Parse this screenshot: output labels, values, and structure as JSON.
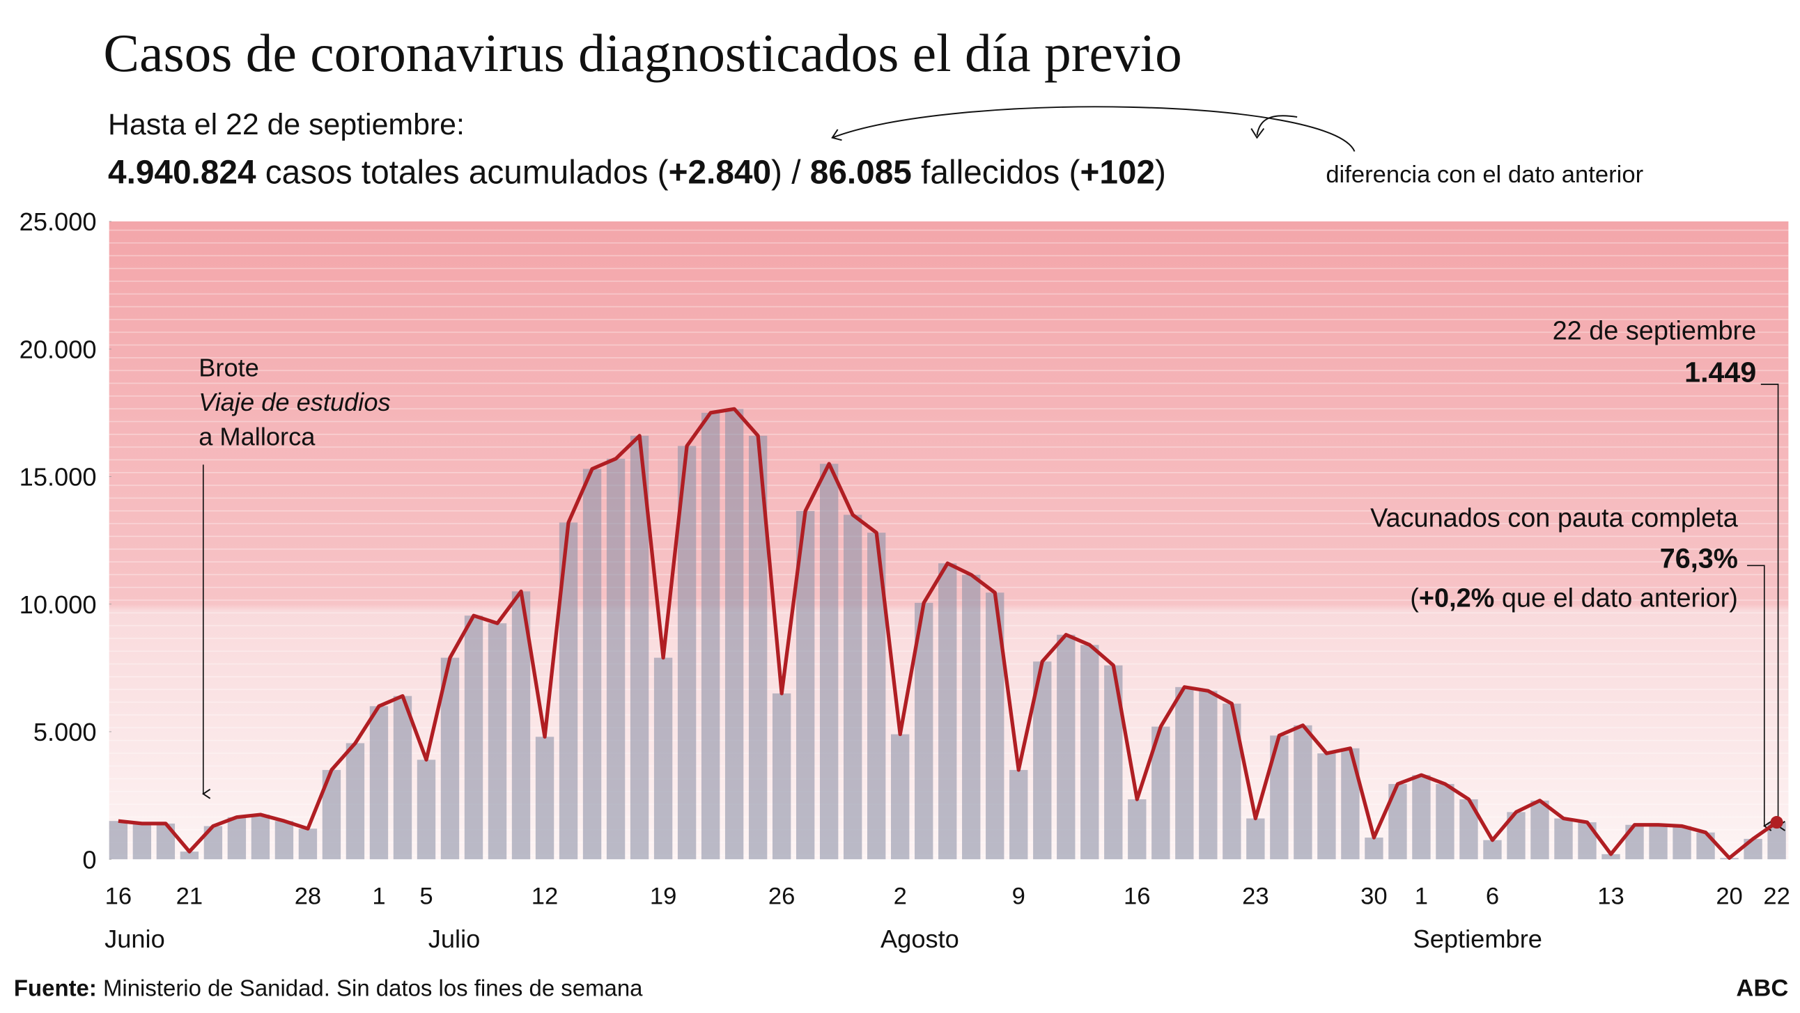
{
  "chart_data": {
    "type": "bar-line",
    "title": "Casos de coronavirus diagnosticados el día previo",
    "subtitle": "Hasta el 22 de septiembre:",
    "stats": [
      {
        "text": "4.940.824",
        "bold": true
      },
      {
        "text": " casos totales acumulados (",
        "bold": false
      },
      {
        "text": "+2.840",
        "bold": true
      },
      {
        "text": ") / ",
        "bold": false
      },
      {
        "text": "86.085",
        "bold": true
      },
      {
        "text": " fallecidos (",
        "bold": false
      },
      {
        "text": "+102",
        "bold": true
      },
      {
        "text": ")",
        "bold": false
      }
    ],
    "stats_note": "diferencia con el dato anterior",
    "annotation_outbreak": [
      "Brote",
      "Viaje de estudios",
      "a Mallorca"
    ],
    "annotation_last": "22 de septiembre",
    "annotation_vaccine": {
      "title": "Vacunados con pauta completa",
      "value": "76,3%",
      "open": "(",
      "change": "+0,2%",
      "rest": " que el dato anterior)"
    },
    "categories": [
      "16",
      null,
      null,
      "21",
      null,
      null,
      null,
      null,
      "28",
      null,
      null,
      "1",
      null,
      "5",
      null,
      null,
      null,
      null,
      "12",
      null,
      null,
      null,
      null,
      "19",
      null,
      null,
      null,
      null,
      "26",
      null,
      null,
      null,
      null,
      "2",
      null,
      null,
      null,
      null,
      "9",
      null,
      null,
      null,
      null,
      "16",
      null,
      null,
      null,
      null,
      "23",
      null,
      null,
      null,
      null,
      "30",
      null,
      "1",
      null,
      null,
      "6",
      null,
      null,
      null,
      null,
      "13",
      null,
      null,
      null,
      null,
      "20",
      null,
      "22"
    ],
    "months": [
      "Junio",
      "Julio",
      "Agosto",
      "Septiembre"
    ],
    "values": [
      1500,
      1400,
      1400,
      300,
      1300,
      1650,
      1750,
      1500,
      1200,
      3500,
      4550,
      6000,
      6400,
      3900,
      7900,
      9550,
      9250,
      10500,
      4800,
      13200,
      15300,
      15700,
      16600,
      7900,
      16200,
      17500,
      17650,
      16600,
      6500,
      13650,
      15500,
      13500,
      12800,
      4900,
      10050,
      11600,
      11150,
      10450,
      3500,
      7750,
      8800,
      8400,
      7600,
      2350,
      5200,
      6750,
      6600,
      6100,
      1600,
      4850,
      5250,
      4150,
      4350,
      850,
      2950,
      3300,
      2950,
      2350,
      750,
      1850,
      2300,
      1600,
      1450,
      200,
      1350,
      1350,
      1300,
      1050,
      50,
      800,
      1449
    ],
    "value_labels": [
      null,
      null,
      null,
      null,
      null,
      null,
      null,
      null,
      null,
      null,
      null,
      null,
      null,
      null,
      null,
      null,
      null,
      null,
      null,
      null,
      null,
      null,
      null,
      null,
      null,
      null,
      null,
      null,
      null,
      null,
      null,
      null,
      null,
      null,
      null,
      null,
      null,
      null,
      null,
      null,
      null,
      null,
      null,
      null,
      null,
      null,
      null,
      null,
      null,
      null,
      null,
      null,
      null,
      null,
      null,
      null,
      null,
      null,
      null,
      null,
      null,
      null,
      null,
      null,
      null,
      null,
      null,
      null,
      null,
      null,
      "1.449"
    ],
    "bar_color": "#8d92a8",
    "line_color": "#b01e23",
    "ylim": [
      0,
      25000
    ],
    "yticks": [
      0,
      {
        "value": 5000,
        "label": "5.000"
      },
      {
        "value": 10000,
        "label": "10.000"
      },
      {
        "value": 15000,
        "label": "15.000"
      },
      {
        "value": 20000,
        "label": "20.000"
      },
      {
        "value": 25000,
        "label": "25.000"
      }
    ],
    "source_label": "Fuente:",
    "source": " Ministerio de Sanidad. Sin datos los fines de semana",
    "brand": "ABC"
  }
}
